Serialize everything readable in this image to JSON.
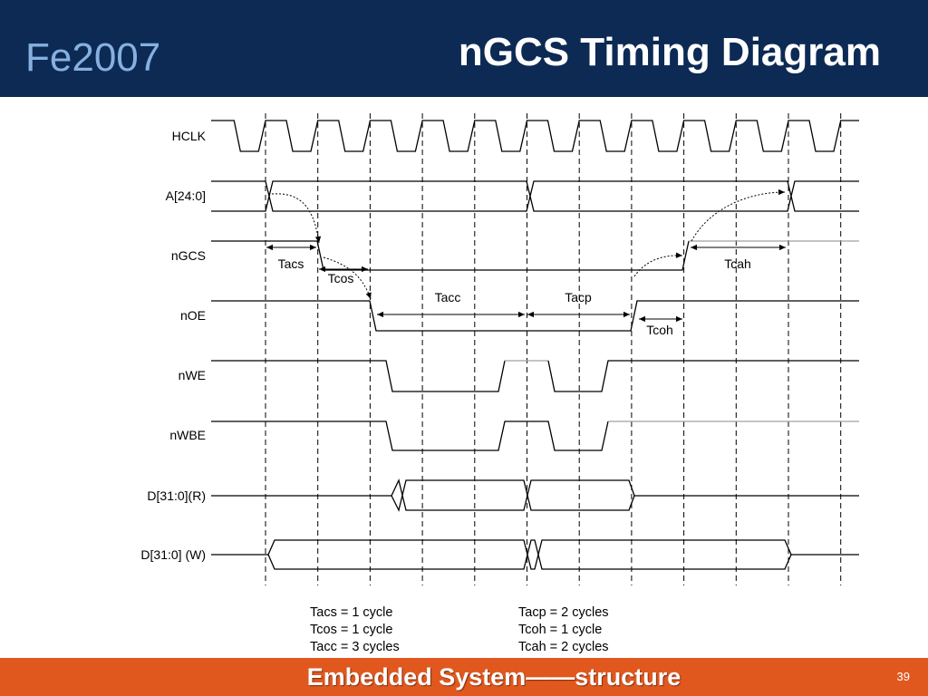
{
  "header": {
    "course_label": "Fe2007",
    "title": "nGCS Timing Diagram"
  },
  "diagram": {
    "signals": {
      "hclk": "HCLK",
      "addr": "A[24:0]",
      "ngcs": "nGCS",
      "noe": "nOE",
      "nwe": "nWE",
      "nwbe": "nWBE",
      "data_read": "D[31:0](R)",
      "data_write": "D[31:0] (W)"
    },
    "intervals": {
      "tacs": "Tacs",
      "tcos": "Tcos",
      "tacc": "Tacc",
      "tacp": "Tacp",
      "tcoh": "Tcoh",
      "tcah": "Tcah"
    },
    "legend": {
      "left": [
        "Tacs = 1 cycle",
        "Tcos = 1 cycle",
        "Tacc = 3 cycles"
      ],
      "right": [
        "Tacp = 2 cycles",
        "Tcoh = 1 cycle",
        "Tcah = 2 cycles"
      ]
    }
  },
  "footer": {
    "title": "Embedded System——structure",
    "page_number": "39"
  },
  "theme": {
    "header_bg": "#0c2a54",
    "header_label_color": "#86b0e0",
    "footer_bg": "#e1581f"
  }
}
